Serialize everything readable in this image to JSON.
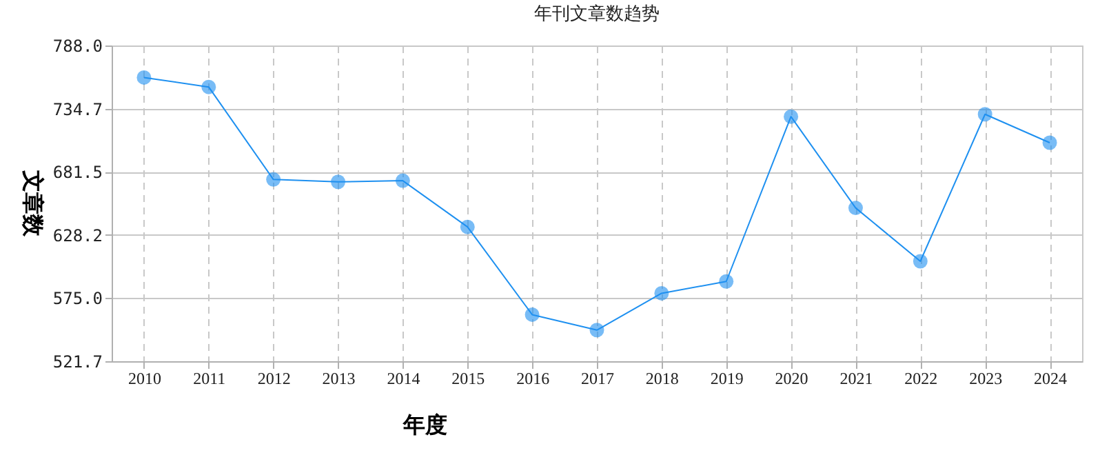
{
  "chart_data": {
    "type": "line",
    "title": "年刊文章数趋势",
    "xlabel": "年度",
    "ylabel": "文章数",
    "categories": [
      "2010",
      "2011",
      "2012",
      "2013",
      "2014",
      "2015",
      "2016",
      "2017",
      "2018",
      "2019",
      "2020",
      "2021",
      "2022",
      "2023",
      "2024"
    ],
    "series": [
      {
        "color": "#1e90f0",
        "values": [
          761,
          753,
          675,
          673,
          674,
          635,
          561,
          548,
          579,
          589,
          728,
          651,
          606,
          730,
          706
        ]
      }
    ],
    "ylim": [
      521.7,
      788.0
    ],
    "yticks": [
      {
        "value": 521.7,
        "label": "521.7"
      },
      {
        "value": 575,
        "label": "575.0"
      },
      {
        "value": 628.2,
        "label": "628.2"
      },
      {
        "value": 681.5,
        "label": "681.5"
      },
      {
        "value": 734.7,
        "label": "734.7"
      },
      {
        "value": 788,
        "label": "788.0"
      }
    ],
    "grid": true,
    "marker": "circle",
    "line_style": "solid"
  }
}
